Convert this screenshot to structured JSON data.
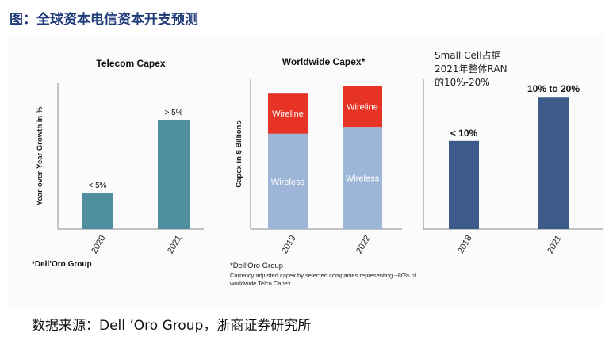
{
  "page": {
    "title": "图：全球资本电信资本开支预测",
    "source": "数据来源：Dell ’Oro Group，浙商证券研究所"
  },
  "chart_data": [
    {
      "type": "bar",
      "title": "Telecom Capex",
      "ylabel": "Year-over-Year Growth in %",
      "categories": [
        "2020",
        "2021"
      ],
      "values": [
        5,
        15
      ],
      "value_labels": [
        "< 5%",
        "> 5%"
      ],
      "ylim": [
        0,
        20
      ],
      "color": "#4f8fa0",
      "note": "*Dell’Oro Group"
    },
    {
      "type": "bar",
      "stacked": true,
      "title": "Worldwide Capex*",
      "ylabel": "Capex in $ Billions",
      "categories": [
        "2019",
        "2022"
      ],
      "series": [
        {
          "name": "Wireless",
          "values": [
            70,
            75
          ],
          "color": "#9db6d8"
        },
        {
          "name": "Wireline",
          "values": [
            30,
            30
          ],
          "color": "#e63326"
        }
      ],
      "ylim": [
        0,
        110
      ],
      "note": "*Dell’Oro Group",
      "footnote": "Currency adjusted capex by selected companies representing ~80% of worldwide Telco Capex"
    },
    {
      "type": "bar",
      "categories": [
        "2018",
        "2021"
      ],
      "values": [
        10,
        15
      ],
      "value_labels": [
        "< 10%",
        "10% to 20%"
      ],
      "ylim": [
        0,
        17
      ],
      "color": "#3c5a8a",
      "annotation": "Small Cell占据\n2021年整体RAN\n的10%-20%"
    }
  ]
}
